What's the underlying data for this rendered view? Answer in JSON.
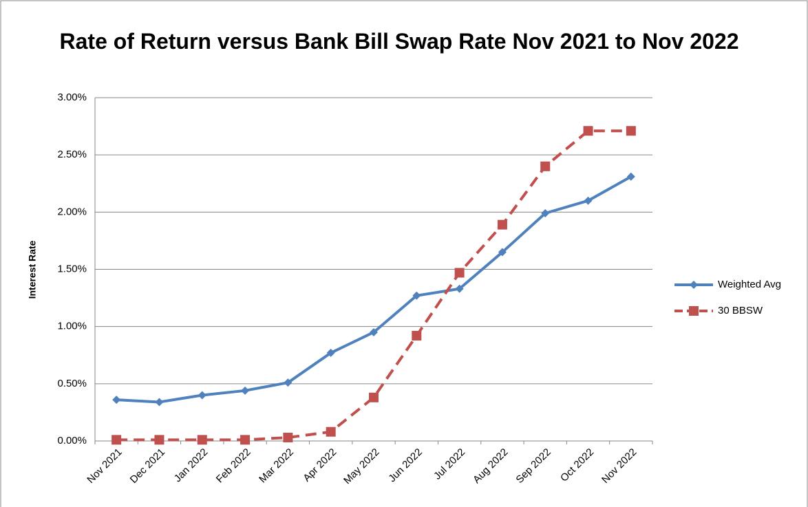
{
  "chart_data": {
    "type": "line",
    "title": "Rate of Return versus Bank Bill Swap Rate Nov 2021 to Nov 2022",
    "y_label": "Interest Rate",
    "categories": [
      "Nov 2021",
      "Dec 2021",
      "Jan 2022",
      "Feb 2022",
      "Mar 2022",
      "Apr 2022",
      "May 2022",
      "Jun 2022",
      "Jul 2022",
      "Aug 2022",
      "Sep 2022",
      "Oct 2022",
      "Nov 2022"
    ],
    "series": [
      {
        "name": "Weighted Avg",
        "color": "#4f81bd",
        "marker": "diamond",
        "line_style": "solid",
        "values": [
          0.36,
          0.34,
          0.4,
          0.44,
          0.51,
          0.77,
          0.95,
          1.27,
          1.33,
          1.65,
          1.99,
          2.1,
          2.31
        ]
      },
      {
        "name": "30 BBSW",
        "color": "#c0504d",
        "marker": "square",
        "line_style": "dashed",
        "values": [
          0.01,
          0.01,
          0.01,
          0.01,
          0.03,
          0.08,
          0.38,
          0.92,
          1.47,
          1.89,
          2.4,
          2.71,
          2.71
        ]
      }
    ],
    "ylim": [
      0,
      3
    ],
    "yticks": [
      {
        "value": 0,
        "label": "0.00%"
      },
      {
        "value": 0.5,
        "label": "0.50%"
      },
      {
        "value": 1,
        "label": "1.00%"
      },
      {
        "value": 1.5,
        "label": "1.50%"
      },
      {
        "value": 2,
        "label": "2.00%"
      },
      {
        "value": 2.5,
        "label": "2.50%"
      },
      {
        "value": 3,
        "label": "3.00%"
      }
    ],
    "grid": true,
    "legend": "right"
  }
}
